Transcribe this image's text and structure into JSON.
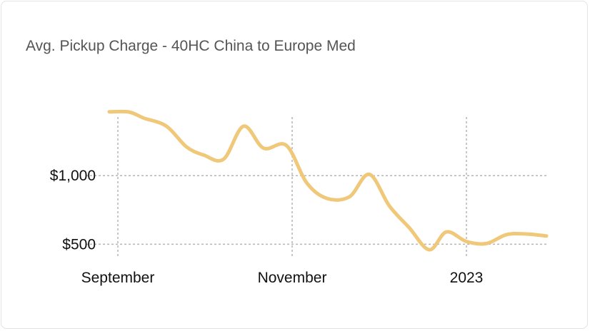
{
  "chart_data": {
    "type": "line",
    "title": "Avg. Pickup Charge - 40HC China to Europe Med",
    "xlabel": "",
    "ylabel": "",
    "x_ticks": [
      "September",
      "November",
      "2023"
    ],
    "y_ticks": [
      "$500",
      "$1,000"
    ],
    "y_tick_values": [
      500,
      1000
    ],
    "x_tick_dates": [
      "2022-09-01",
      "2022-11-01",
      "2023-01-01"
    ],
    "x_range": [
      "2022-08-29",
      "2023-01-29"
    ],
    "ylim": [
      450,
      1500
    ],
    "grid": true,
    "legend": "none",
    "series": [
      {
        "color": "#f0c87a",
        "points": [
          [
            "2022-08-29",
            1465
          ],
          [
            "2022-09-05",
            1463
          ],
          [
            "2022-09-10",
            1420
          ],
          [
            "2022-09-18",
            1360
          ],
          [
            "2022-09-25",
            1210
          ],
          [
            "2022-10-01",
            1150
          ],
          [
            "2022-10-08",
            1120
          ],
          [
            "2022-10-15",
            1360
          ],
          [
            "2022-10-22",
            1200
          ],
          [
            "2022-10-30",
            1220
          ],
          [
            "2022-11-06",
            950
          ],
          [
            "2022-11-13",
            835
          ],
          [
            "2022-11-21",
            845
          ],
          [
            "2022-11-28",
            1010
          ],
          [
            "2022-12-05",
            780
          ],
          [
            "2022-12-12",
            620
          ],
          [
            "2022-12-19",
            460
          ],
          [
            "2022-12-25",
            590
          ],
          [
            "2023-01-01",
            520
          ],
          [
            "2023-01-08",
            505
          ],
          [
            "2023-01-15",
            570
          ],
          [
            "2023-01-22",
            575
          ],
          [
            "2023-01-29",
            560
          ]
        ]
      }
    ]
  }
}
